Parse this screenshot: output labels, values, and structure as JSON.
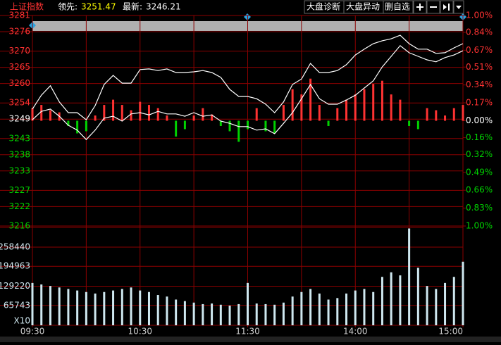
{
  "header": {
    "name": "上证指数",
    "lead_label": "领先:",
    "lead_value": "3251.47",
    "last_label": "最新:",
    "last_value": "3246.21",
    "buttons": [
      "大盘诊断",
      "大盘异动",
      "删自选"
    ]
  },
  "chart_data": {
    "type": "line",
    "x": [
      0,
      5,
      10,
      15,
      20,
      25,
      30,
      35,
      40,
      45,
      50,
      55,
      60,
      65,
      70,
      75,
      80,
      85,
      90,
      95,
      100,
      105,
      110,
      115,
      120,
      125,
      130,
      135,
      140,
      145,
      150,
      155,
      160,
      165,
      170,
      175,
      180,
      185,
      190,
      195,
      200,
      205,
      210,
      215,
      220,
      225,
      230,
      235,
      240
    ],
    "xlim": [
      0,
      240
    ],
    "xticks": [
      {
        "value": 0,
        "label": "09:30"
      },
      {
        "value": 60,
        "label": "10:30"
      },
      {
        "value": 120,
        "label": "11:30"
      },
      {
        "value": 180,
        "label": "14:00"
      },
      {
        "value": 240,
        "label": "15:00"
      }
    ],
    "xgrid": [
      0,
      30,
      60,
      90,
      120,
      150,
      180,
      210,
      240
    ],
    "ylim": [
      3216,
      3281
    ],
    "yticks": [
      3281,
      3276,
      3270,
      3265,
      3260,
      3254,
      3249,
      3243,
      3238,
      3233,
      3227,
      3222,
      3216
    ],
    "y2lim": [
      -1,
      1
    ],
    "y2ticks": [
      {
        "value": 1,
        "label": "1.00%"
      },
      {
        "value": 0.84,
        "label": "0.84%"
      },
      {
        "value": 0.67,
        "label": "0.67%"
      },
      {
        "value": 0.51,
        "label": "0.51%"
      },
      {
        "value": 0.34,
        "label": "0.34%"
      },
      {
        "value": 0.17,
        "label": "0.17%"
      },
      {
        "value": 0,
        "label": "0.00%"
      },
      {
        "value": -0.16,
        "label": "0.16%"
      },
      {
        "value": -0.32,
        "label": "0.32%"
      },
      {
        "value": -0.49,
        "label": "0.49%"
      },
      {
        "value": -0.66,
        "label": "0.66%"
      },
      {
        "value": -0.83,
        "label": "0.83%"
      },
      {
        "value": -1,
        "label": "1.00%"
      }
    ],
    "grid_color": "#8b0000",
    "up_color": "#ff3232",
    "down_color": "#00d200",
    "series": [
      {
        "color": "#ffffff",
        "values": [
          3252.1,
          3256.4,
          3259.3,
          3254.3,
          3251.0,
          3251.0,
          3248.8,
          3253.2,
          3259.7,
          3262.5,
          3260.1,
          3260.1,
          3264.3,
          3264.5,
          3264.0,
          3264.5,
          3263.4,
          3263.4,
          3263.6,
          3264.0,
          3263.4,
          3261.9,
          3258.2,
          3256.0,
          3256.0,
          3255.3,
          3253.6,
          3251.0,
          3254.3,
          3259.7,
          3261.4,
          3266.2,
          3263.4,
          3263.4,
          3264.0,
          3265.8,
          3268.8,
          3270.6,
          3272.3,
          3273.2,
          3273.8,
          3274.9,
          3272.3,
          3270.6,
          3270.6,
          3269.3,
          3269.5,
          3271.0,
          3272.3
        ]
      },
      {
        "color": "#ffffff",
        "values": [
          3248.8,
          3251.4,
          3252.1,
          3249.9,
          3247.1,
          3245.6,
          3242.7,
          3245.6,
          3249.3,
          3249.9,
          3248.4,
          3250.6,
          3251.0,
          3250.3,
          3251.4,
          3250.6,
          3250.6,
          3249.9,
          3251.0,
          3249.9,
          3250.3,
          3248.4,
          3247.7,
          3246.7,
          3246.7,
          3245.6,
          3246.0,
          3244.5,
          3247.7,
          3251.0,
          3255.3,
          3259.7,
          3255.3,
          3253.6,
          3253.6,
          3254.9,
          3256.4,
          3258.6,
          3260.8,
          3265.1,
          3268.4,
          3271.7,
          3269.5,
          3268.4,
          3267.3,
          3266.7,
          3268.0,
          3268.8,
          3270.1
        ]
      }
    ],
    "bars": [
      0.12,
      0.15,
      0.1,
      0.08,
      -0.05,
      -0.12,
      -0.1,
      0.05,
      0.15,
      0.2,
      0.15,
      0.1,
      0.18,
      0.15,
      0.12,
      0.05,
      -0.15,
      -0.08,
      0.05,
      0.12,
      0.06,
      -0.05,
      -0.1,
      -0.2,
      -0.08,
      0.12,
      -0.1,
      -0.12,
      0.15,
      0.3,
      0.25,
      0.4,
      0.15,
      -0.05,
      0.12,
      0.2,
      0.25,
      0.3,
      0.35,
      0.38,
      0.25,
      0.2,
      -0.05,
      -0.08,
      0.12,
      0.1,
      0.05,
      0.12,
      0.15
    ],
    "volume": {
      "color": "#cfe8f0",
      "ylim": [
        0,
        323500
      ],
      "yticks": [
        258440,
        194963,
        129220,
        65743
      ],
      "unit_label": "X10",
      "values": [
        140000,
        135000,
        130000,
        125000,
        120000,
        115000,
        110000,
        105000,
        110000,
        115000,
        120000,
        125000,
        115000,
        110000,
        100000,
        95000,
        85000,
        80000,
        75000,
        70000,
        72000,
        68000,
        65000,
        70000,
        140000,
        72000,
        70000,
        68000,
        75000,
        95000,
        110000,
        120000,
        105000,
        85000,
        90000,
        105000,
        115000,
        120000,
        110000,
        160000,
        175000,
        165000,
        320000,
        190000,
        130000,
        120000,
        140000,
        160000,
        210000
      ]
    }
  }
}
